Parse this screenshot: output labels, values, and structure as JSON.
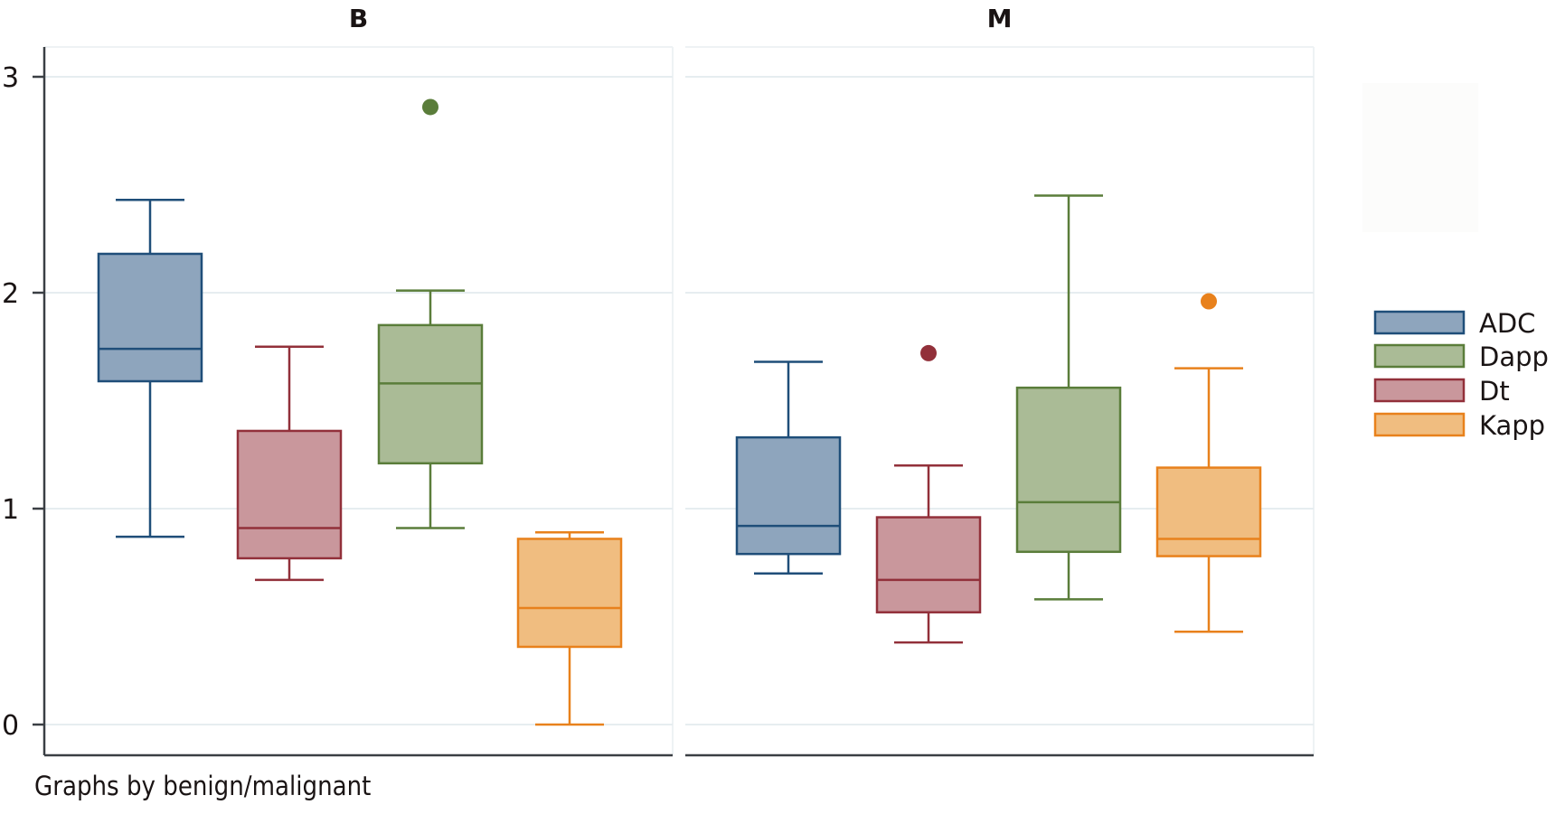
{
  "chart_data": {
    "type": "boxplot",
    "note": "Graphs by benign/malignant",
    "ylim": [
      -0.15,
      3.15
    ],
    "yticks": [
      0,
      1,
      2,
      3
    ],
    "ytick_labels": [
      "0",
      "1",
      "2",
      "3"
    ],
    "grid": true,
    "legend_position": "right",
    "series": [
      {
        "name": "ADC",
        "color": "#1f4e79",
        "fill": "#8ea5bd"
      },
      {
        "name": "Dapp",
        "color": "#5a7d3a",
        "fill": "#aabb96"
      },
      {
        "name": "Dt",
        "color": "#92303a",
        "fill": "#c9979c"
      },
      {
        "name": "Kapp",
        "color": "#e8811c",
        "fill": "#f0bd80"
      }
    ],
    "panels": [
      {
        "title": "B",
        "boxes": [
          {
            "series": "ADC",
            "whisker_low": 0.87,
            "q1": 1.59,
            "median": 1.74,
            "q3": 2.18,
            "whisker_high": 2.43,
            "outliers": []
          },
          {
            "series": "Dt",
            "whisker_low": 0.67,
            "q1": 0.77,
            "median": 0.91,
            "q3": 1.36,
            "whisker_high": 1.75,
            "outliers": []
          },
          {
            "series": "Dapp",
            "whisker_low": 0.91,
            "q1": 1.21,
            "median": 1.58,
            "q3": 1.85,
            "whisker_high": 2.01,
            "outliers": [
              2.86
            ]
          },
          {
            "series": "Kapp",
            "whisker_low": 0.0,
            "q1": 0.36,
            "median": 0.54,
            "q3": 0.86,
            "whisker_high": 0.89,
            "outliers": []
          }
        ]
      },
      {
        "title": "M",
        "boxes": [
          {
            "series": "ADC",
            "whisker_low": 0.7,
            "q1": 0.79,
            "median": 0.92,
            "q3": 1.33,
            "whisker_high": 1.68,
            "outliers": []
          },
          {
            "series": "Dt",
            "whisker_low": 0.38,
            "q1": 0.52,
            "median": 0.67,
            "q3": 0.96,
            "whisker_high": 1.2,
            "outliers": [
              1.72
            ]
          },
          {
            "series": "Dapp",
            "whisker_low": 0.58,
            "q1": 0.8,
            "median": 1.03,
            "q3": 1.56,
            "whisker_high": 2.45,
            "outliers": []
          },
          {
            "series": "Kapp",
            "whisker_low": 0.43,
            "q1": 0.78,
            "median": 0.86,
            "q3": 1.19,
            "whisker_high": 1.65,
            "outliers": [
              1.96
            ]
          }
        ]
      }
    ]
  }
}
